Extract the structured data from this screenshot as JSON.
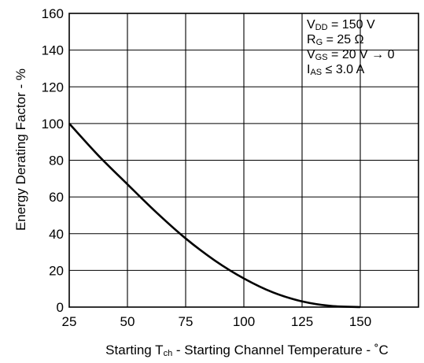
{
  "chart_data": {
    "type": "line",
    "xlabel_main": "Starting T",
    "xlabel_sub": "ch",
    "xlabel_rest": " - Starting Channel Temperature - ˚C",
    "ylabel": "Energy Derating Factor - %",
    "xlim": [
      25,
      175
    ],
    "ylim": [
      0,
      160
    ],
    "x_ticks": [
      25,
      50,
      75,
      100,
      125,
      150
    ],
    "y_ticks": [
      0,
      20,
      40,
      60,
      80,
      100,
      120,
      140,
      160
    ],
    "grid": true,
    "x": [
      25,
      37.5,
      50,
      62.5,
      75,
      87.5,
      100,
      112.5,
      125,
      137.5,
      150
    ],
    "y": [
      100,
      82.6,
      66.9,
      51.5,
      37.4,
      25.4,
      15.6,
      8.0,
      3.1,
      0.6,
      0
    ],
    "conditions": [
      {
        "main": "V",
        "sub": "DD",
        "rest": " = 150 V"
      },
      {
        "main": "R",
        "sub": "G",
        "rest": " = 25 Ω"
      },
      {
        "main": "V",
        "sub": "GS",
        "rest": " = 20 V → 0"
      },
      {
        "main": "I",
        "sub": "AS",
        "rest": " ≤ 3.0 A"
      }
    ]
  }
}
